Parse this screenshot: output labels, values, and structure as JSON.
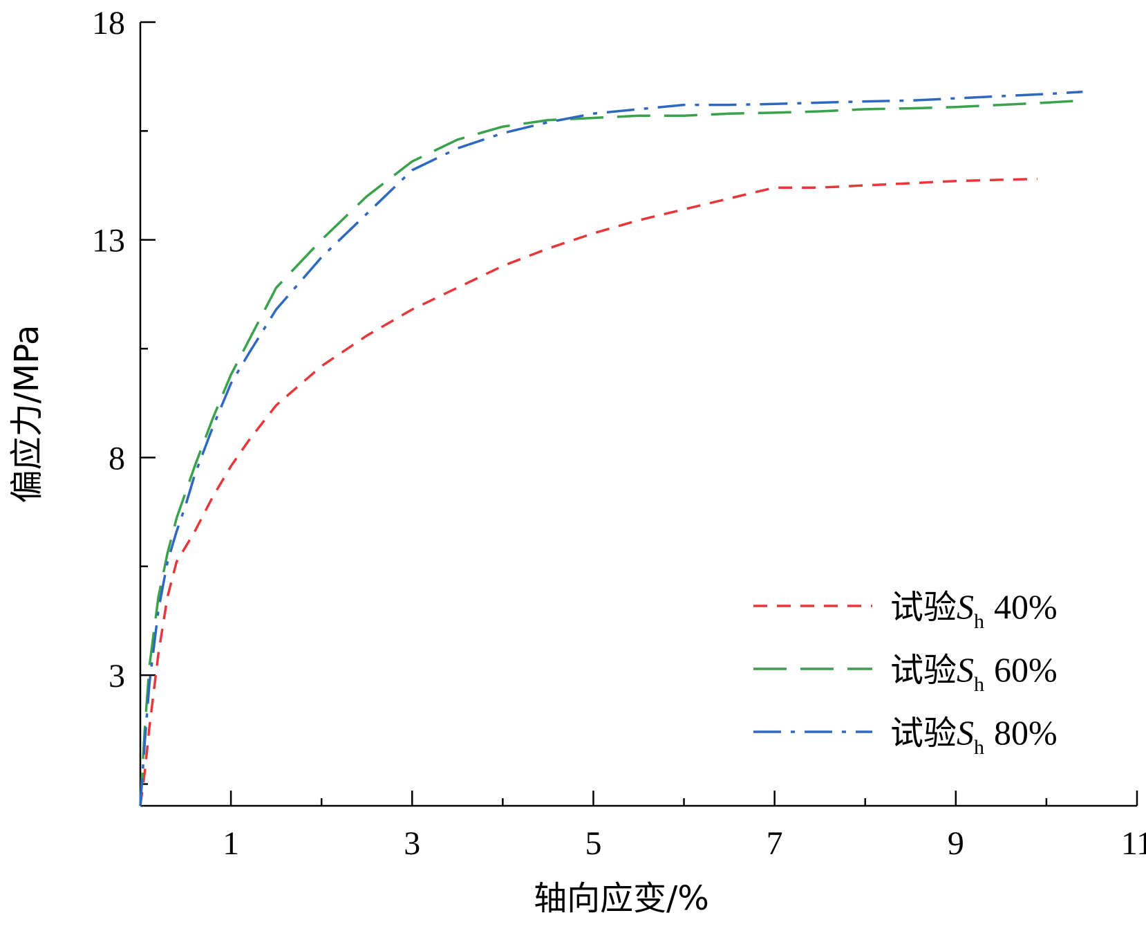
{
  "chart_data": {
    "type": "line",
    "title": "",
    "xlabel": "轴向应变/%",
    "ylabel": "偏应力/MPa",
    "xlim": [
      0,
      11
    ],
    "ylim": [
      0,
      18
    ],
    "xticks": [
      1,
      3,
      5,
      7,
      9,
      11
    ],
    "yticks": [
      3,
      8,
      13,
      18
    ],
    "grid": false,
    "legend_position": "bottom-right",
    "series": [
      {
        "name": "试验Sh 40%",
        "legend_prefix": "试验",
        "legend_symbol": "S",
        "legend_subscript": "h",
        "legend_value": "40%",
        "color": "#e8373a",
        "dash": "short-dash",
        "x": [
          0,
          0.05,
          0.1,
          0.2,
          0.3,
          0.4,
          0.6,
          0.8,
          1.0,
          1.2,
          1.5,
          2.0,
          2.5,
          3.0,
          3.5,
          4.0,
          4.5,
          5.0,
          5.5,
          6.0,
          6.5,
          7.0,
          7.5,
          8.0,
          8.5,
          9.0,
          9.5,
          9.9
        ],
        "y": [
          0,
          0.8,
          1.8,
          3.5,
          4.8,
          5.6,
          6.3,
          7.1,
          7.8,
          8.4,
          9.2,
          10.1,
          10.8,
          11.4,
          11.9,
          12.4,
          12.8,
          13.15,
          13.45,
          13.7,
          13.95,
          14.2,
          14.2,
          14.25,
          14.3,
          14.35,
          14.38,
          14.4
        ]
      },
      {
        "name": "试验Sh 60%",
        "legend_prefix": "试验",
        "legend_symbol": "S",
        "legend_subscript": "h",
        "legend_value": "60%",
        "color": "#39a24b",
        "dash": "long-dash",
        "x": [
          0,
          0.05,
          0.1,
          0.2,
          0.3,
          0.4,
          0.5,
          0.6,
          0.8,
          1.0,
          1.2,
          1.5,
          2.0,
          2.5,
          3.0,
          3.5,
          4.0,
          4.5,
          5.0,
          5.5,
          6.0,
          6.5,
          7.0,
          7.5,
          8.0,
          8.5,
          9.0,
          9.5,
          10.0,
          10.4
        ],
        "y": [
          0,
          1.8,
          3.2,
          4.8,
          5.8,
          6.6,
          7.2,
          7.8,
          8.9,
          9.9,
          10.7,
          11.9,
          13.0,
          14.0,
          14.8,
          15.3,
          15.6,
          15.75,
          15.8,
          15.85,
          15.85,
          15.9,
          15.92,
          15.95,
          16.0,
          16.02,
          16.05,
          16.1,
          16.15,
          16.2
        ]
      },
      {
        "name": "试验Sh 80%",
        "legend_prefix": "试验",
        "legend_symbol": "S",
        "legend_subscript": "h",
        "legend_value": "80%",
        "color": "#2f68c0",
        "dash": "dash-dot",
        "x": [
          0,
          0.05,
          0.1,
          0.2,
          0.3,
          0.4,
          0.5,
          0.6,
          0.8,
          1.0,
          1.2,
          1.5,
          2.0,
          2.5,
          3.0,
          3.5,
          4.0,
          4.5,
          5.0,
          5.5,
          6.0,
          6.5,
          7.0,
          7.5,
          8.0,
          8.5,
          9.0,
          9.5,
          10.0,
          10.4
        ],
        "y": [
          0,
          1.5,
          2.8,
          4.5,
          5.6,
          6.3,
          6.9,
          7.6,
          8.7,
          9.7,
          10.4,
          11.4,
          12.6,
          13.6,
          14.6,
          15.1,
          15.45,
          15.7,
          15.9,
          16.0,
          16.1,
          16.1,
          16.12,
          16.15,
          16.18,
          16.2,
          16.25,
          16.3,
          16.35,
          16.4
        ]
      }
    ]
  }
}
